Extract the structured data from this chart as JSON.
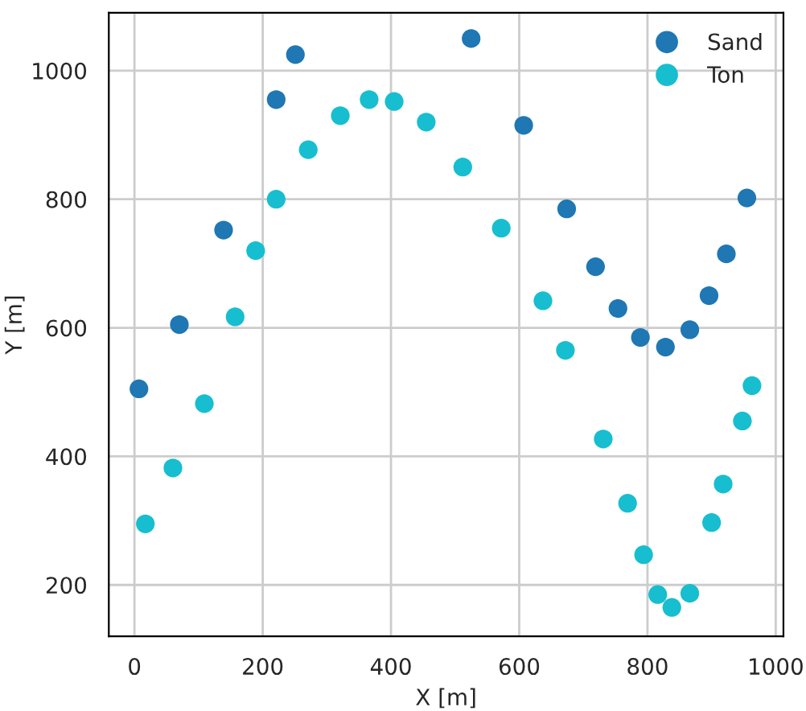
{
  "chart_data": {
    "type": "scatter",
    "xlabel": "X [m]",
    "ylabel": "Y [m]",
    "xlim": [
      -40,
      1012
    ],
    "ylim": [
      120,
      1090
    ],
    "xticks": [
      0,
      200,
      400,
      600,
      800,
      1000
    ],
    "yticks": [
      200,
      400,
      600,
      800,
      1000
    ],
    "grid": true,
    "legend": "top right",
    "marker": "circle",
    "series": [
      {
        "name": "Sand",
        "color": "#1f77b4",
        "x": [
          7,
          70,
          139,
          221,
          251,
          525,
          607,
          674,
          719,
          754,
          789,
          828,
          866,
          896,
          923,
          955
        ],
        "values": [
          505,
          605,
          752,
          955,
          1025,
          1050,
          915,
          785,
          695,
          630,
          585,
          570,
          597,
          650,
          715,
          802
        ]
      },
      {
        "name": "Ton",
        "color": "#17becf",
        "x": [
          17,
          60,
          109,
          157,
          189,
          221,
          271,
          321,
          366,
          405,
          455,
          512,
          572,
          637,
          672,
          731,
          769,
          794,
          816,
          838,
          866,
          900,
          918,
          948,
          963
        ],
        "values": [
          295,
          382,
          482,
          617,
          720,
          800,
          877,
          930,
          955,
          952,
          920,
          850,
          755,
          642,
          565,
          427,
          327,
          247,
          185,
          165,
          187,
          297,
          357,
          455,
          510
        ]
      }
    ]
  }
}
